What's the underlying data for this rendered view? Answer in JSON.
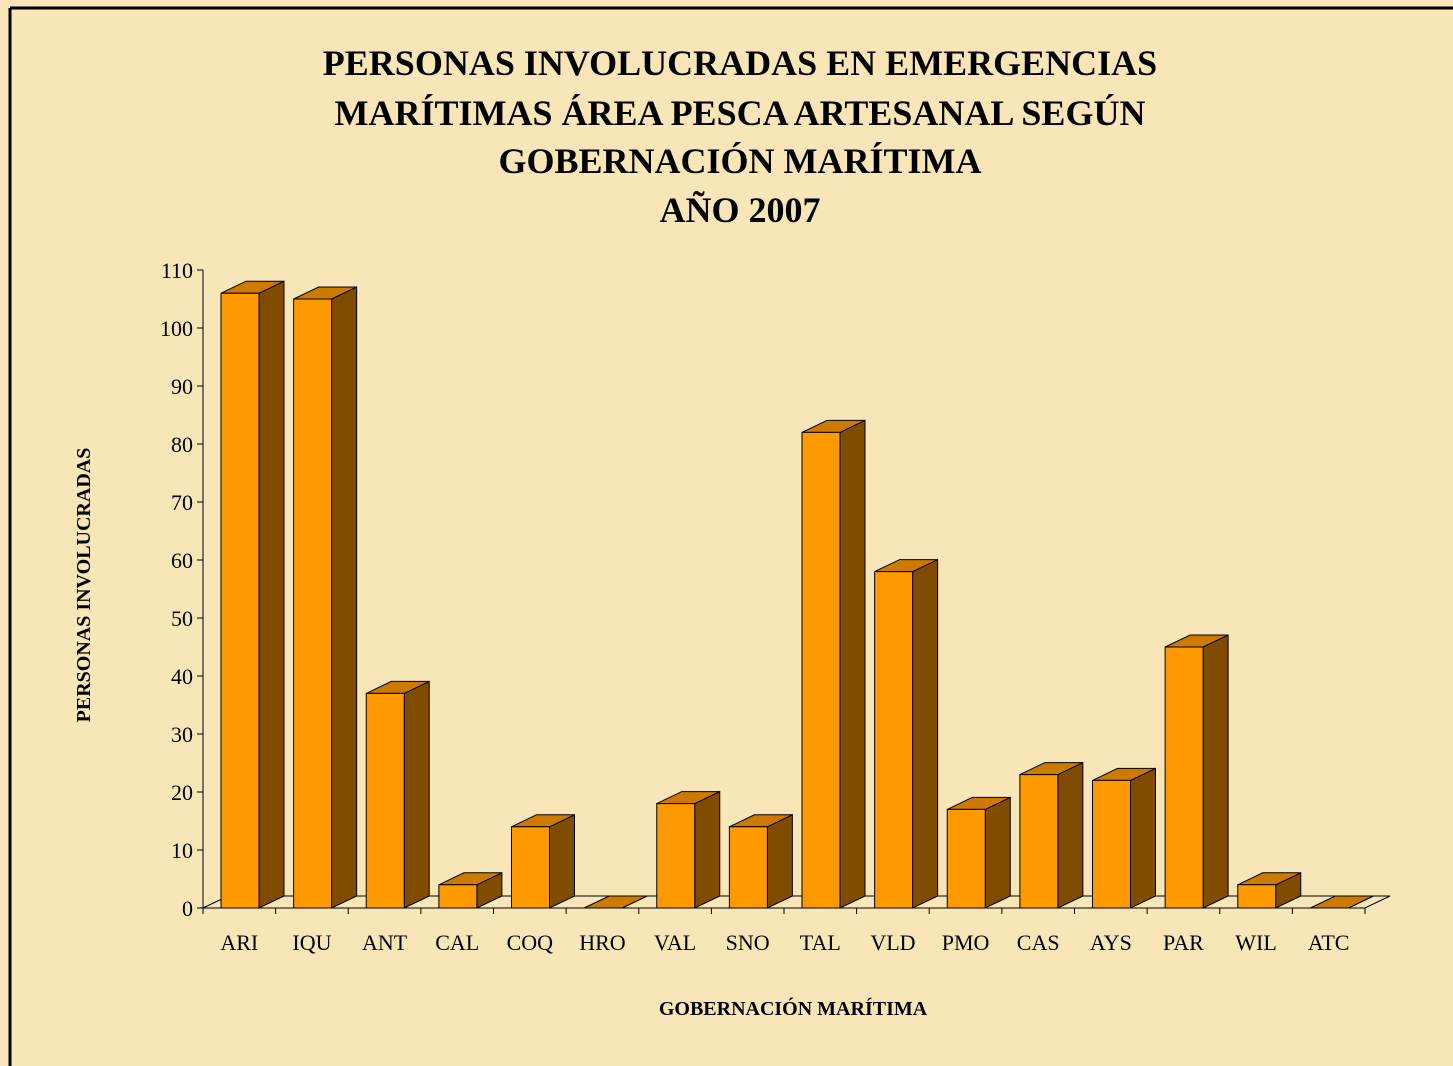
{
  "chart_data": {
    "type": "bar3d",
    "title": [
      "PERSONAS INVOLUCRADAS EN EMERGENCIAS",
      "MARÍTIMAS ÁREA PESCA ARTESANAL SEGÚN",
      "GOBERNACIÓN MARÍTIMA",
      "AÑO 2007"
    ],
    "x_label": "GOBERNACIÓN MARÍTIMA",
    "y_label": "PERSONAS INVOLUCRADAS",
    "categories": [
      "ARI",
      "IQU",
      "ANT",
      "CAL",
      "COQ",
      "HRO",
      "VAL",
      "SNO",
      "TAL",
      "VLD",
      "PMO",
      "CAS",
      "AYS",
      "PAR",
      "WIL",
      "ATC"
    ],
    "values": [
      106,
      105,
      37,
      4,
      14,
      0,
      18,
      14,
      82,
      58,
      17,
      23,
      22,
      45,
      4,
      0
    ],
    "color": "#ff9900",
    "ylim": [
      0,
      110
    ],
    "yticks": [
      0,
      10,
      20,
      30,
      40,
      50,
      60,
      70,
      80,
      90,
      100,
      110
    ],
    "grid": false
  }
}
